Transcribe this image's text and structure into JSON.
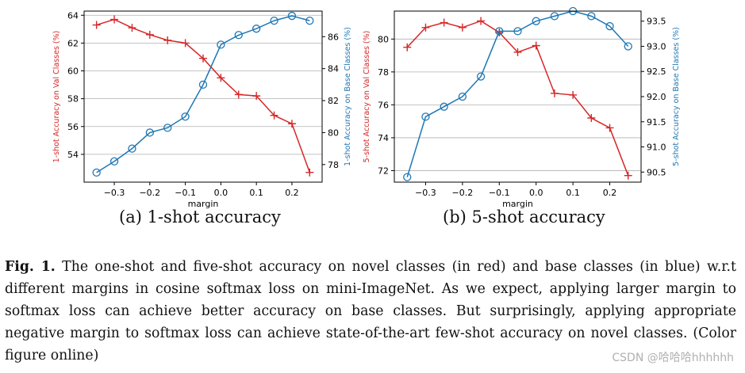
{
  "chart_data": [
    {
      "type": "line",
      "subcaption": "(a) 1-shot accuracy",
      "xlabel": "margin",
      "ylabel_left": "1-shot Accuracy on Val Classes (%)",
      "ylabel_right": "1-shot Accuracy on Base Classes (%)",
      "x": [
        -0.35,
        -0.3,
        -0.25,
        -0.2,
        -0.15,
        -0.1,
        -0.05,
        0.0,
        0.05,
        0.1,
        0.15,
        0.2,
        0.25
      ],
      "xlim": [
        -0.385,
        0.285
      ],
      "xticks": [
        -0.3,
        -0.2,
        -0.1,
        0.0,
        0.1,
        0.2
      ],
      "xtick_labels": [
        "−0.3",
        "−0.2",
        "−0.1",
        "0.0",
        "0.1",
        "0.2"
      ],
      "ylim_left": [
        52.0,
        64.3
      ],
      "yticks_left": [
        54,
        56,
        58,
        60,
        62,
        64
      ],
      "ylim_right": [
        76.9,
        87.6
      ],
      "yticks_right": [
        78,
        80,
        82,
        84,
        86
      ],
      "grid": "horizontal (left axis)",
      "series": [
        {
          "axis": "left",
          "color": "#d62728",
          "marker": "plus",
          "values": [
            63.3,
            63.7,
            63.1,
            62.6,
            62.2,
            62.0,
            60.9,
            59.5,
            58.3,
            58.2,
            56.8,
            56.2,
            52.7
          ]
        },
        {
          "axis": "right",
          "color": "#1f77b4",
          "marker": "circle",
          "values": [
            77.5,
            78.2,
            79.0,
            80.0,
            80.3,
            81.0,
            83.0,
            85.5,
            86.1,
            86.5,
            87.0,
            87.3,
            87.0
          ]
        }
      ]
    },
    {
      "type": "line",
      "subcaption": "(b) 5-shot accuracy",
      "xlabel": "margin",
      "ylabel_left": "5-shot Accuracy on Val Classes (%)",
      "ylabel_right": "5-shot Accuracy on Base Classes (%)",
      "x": [
        -0.35,
        -0.3,
        -0.25,
        -0.2,
        -0.15,
        -0.1,
        -0.05,
        0.0,
        0.05,
        0.1,
        0.15,
        0.2,
        0.25
      ],
      "xlim": [
        -0.385,
        0.285
      ],
      "xticks": [
        -0.3,
        -0.2,
        -0.1,
        0.0,
        0.1,
        0.2
      ],
      "xtick_labels": [
        "−0.3",
        "−0.2",
        "−0.1",
        "0.0",
        "0.1",
        "0.2"
      ],
      "ylim_left": [
        71.3,
        81.7
      ],
      "yticks_left": [
        72,
        74,
        76,
        78,
        80
      ],
      "ylim_right": [
        90.3,
        93.7
      ],
      "yticks_right": [
        90.5,
        91.0,
        91.5,
        92.0,
        92.5,
        93.0,
        93.5
      ],
      "ytick_labels_right": [
        "90.5",
        "91.0",
        "91.5",
        "92.0",
        "92.5",
        "93.0",
        "93.5"
      ],
      "grid": "horizontal (left axis)",
      "series": [
        {
          "axis": "left",
          "color": "#d62728",
          "marker": "plus",
          "values": [
            79.5,
            80.7,
            81.0,
            80.7,
            81.1,
            80.4,
            79.2,
            79.6,
            76.7,
            76.6,
            75.2,
            74.6,
            71.7
          ]
        },
        {
          "axis": "right",
          "color": "#1f77b4",
          "marker": "circle",
          "values": [
            90.4,
            91.6,
            91.8,
            92.0,
            92.4,
            93.3,
            93.3,
            93.5,
            93.6,
            93.7,
            93.6,
            93.4,
            93.0
          ]
        }
      ]
    }
  ],
  "caption": {
    "label": "Fig. 1.",
    "text": "The one-shot and five-shot accuracy on novel classes (in red) and base classes (in blue) w.r.t different margins in cosine softmax loss on mini-ImageNet. As we expect, applying larger margin to softmax loss can achieve better accuracy on base classes. But surprisingly, applying appropriate negative margin to softmax loss can achieve state-of-the-art few-shot accuracy on novel classes. (Color figure online)"
  },
  "watermark": "CSDN @哈哈哈hhhhhh"
}
